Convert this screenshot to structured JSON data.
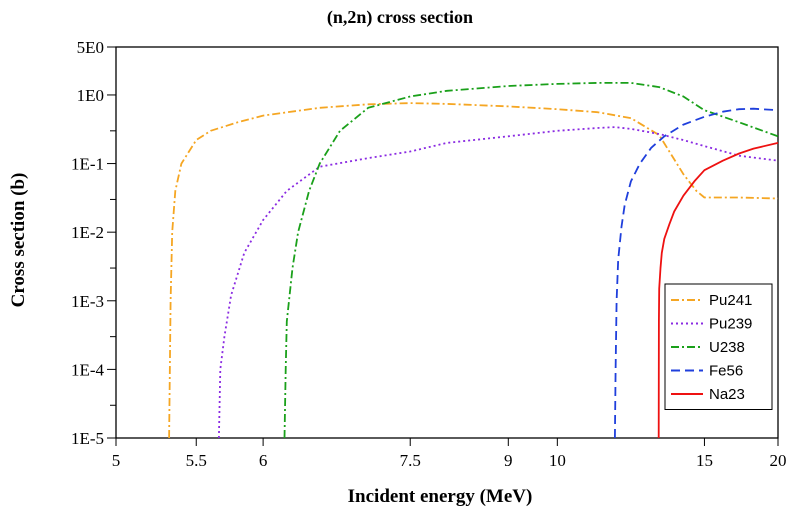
{
  "chart_data": {
    "type": "line",
    "title": "(n,2n) cross section",
    "xlabel": "Incident energy (MeV)",
    "ylabel": "Cross section (b)",
    "x_scale": "reciprocal",
    "y_scale": "log",
    "xlim": [
      5,
      20
    ],
    "ylim": [
      1e-05,
      5
    ],
    "x_ticks": [
      5,
      5.5,
      6,
      7.5,
      9,
      10,
      15,
      20
    ],
    "x_tick_labels": [
      "5",
      "5.5",
      "6",
      "7.5",
      "9",
      "10",
      "15",
      "20"
    ],
    "y_ticks": [
      1e-05,
      0.0001,
      0.001,
      0.01,
      0.1,
      1,
      5
    ],
    "y_tick_labels": [
      "1E-5",
      "1E-4",
      "1E-3",
      "1E-2",
      "1E-1",
      "1E0",
      "5E0"
    ],
    "legend_position": "bottom-right",
    "grid": false,
    "series": [
      {
        "name": "Pu241",
        "color": "#f5a623",
        "dash": "dash-dot",
        "x": [
          5.32,
          5.33,
          5.34,
          5.36,
          5.4,
          5.5,
          5.6,
          5.8,
          6.0,
          6.5,
          7.0,
          7.5,
          8.0,
          9.0,
          10.0,
          11.0,
          12.0,
          13.0,
          14.0,
          14.6,
          15.0,
          17.0,
          20.0
        ],
        "y": [
          1e-05,
          0.001,
          0.01,
          0.04,
          0.1,
          0.22,
          0.3,
          0.4,
          0.5,
          0.65,
          0.73,
          0.76,
          0.74,
          0.68,
          0.62,
          0.56,
          0.46,
          0.26,
          0.07,
          0.04,
          0.032,
          0.032,
          0.031
        ]
      },
      {
        "name": "Pu239",
        "color": "#8a2be2",
        "dash": "dotted",
        "x": [
          5.66,
          5.67,
          5.7,
          5.75,
          5.85,
          6.0,
          6.2,
          6.5,
          7.0,
          7.5,
          8.0,
          9.0,
          10.0,
          11.0,
          11.5,
          12.0,
          13.0,
          14.0,
          15.0,
          17.0,
          20.0
        ],
        "y": [
          1e-05,
          0.0001,
          0.0003,
          0.0012,
          0.005,
          0.015,
          0.04,
          0.09,
          0.12,
          0.15,
          0.2,
          0.25,
          0.3,
          0.33,
          0.34,
          0.32,
          0.27,
          0.22,
          0.18,
          0.13,
          0.11
        ]
      },
      {
        "name": "U238",
        "color": "#1aa01a",
        "dash": "dash-dot",
        "x": [
          6.18,
          6.19,
          6.2,
          6.25,
          6.3,
          6.4,
          6.5,
          6.7,
          7.0,
          7.5,
          8.0,
          9.0,
          10.0,
          11.0,
          12.0,
          13.0,
          14.0,
          15.0,
          17.0,
          20.0
        ],
        "y": [
          1e-05,
          0.0001,
          0.0005,
          0.003,
          0.01,
          0.04,
          0.1,
          0.3,
          0.65,
          0.95,
          1.15,
          1.35,
          1.45,
          1.5,
          1.5,
          1.3,
          0.95,
          0.6,
          0.4,
          0.25
        ]
      },
      {
        "name": "Fe56",
        "color": "#1f3fdc",
        "dash": "dashed",
        "x": [
          11.5,
          11.52,
          11.55,
          11.6,
          11.7,
          11.8,
          12.0,
          12.3,
          12.7,
          13.2,
          14.0,
          15.0,
          16.0,
          17.0,
          18.0,
          20.0
        ],
        "y": [
          1e-05,
          0.0001,
          0.001,
          0.004,
          0.012,
          0.025,
          0.055,
          0.1,
          0.17,
          0.25,
          0.37,
          0.48,
          0.57,
          0.62,
          0.63,
          0.6
        ]
      },
      {
        "name": "Na23",
        "color": "#ee1111",
        "dash": "solid",
        "x": [
          12.98,
          12.99,
          13.0,
          13.05,
          13.1,
          13.2,
          13.4,
          13.6,
          14.0,
          14.5,
          15.0,
          16.0,
          17.0,
          18.0,
          20.0
        ],
        "y": [
          1e-05,
          0.0005,
          0.0015,
          0.003,
          0.005,
          0.008,
          0.013,
          0.02,
          0.034,
          0.055,
          0.08,
          0.11,
          0.14,
          0.165,
          0.2
        ]
      }
    ]
  }
}
